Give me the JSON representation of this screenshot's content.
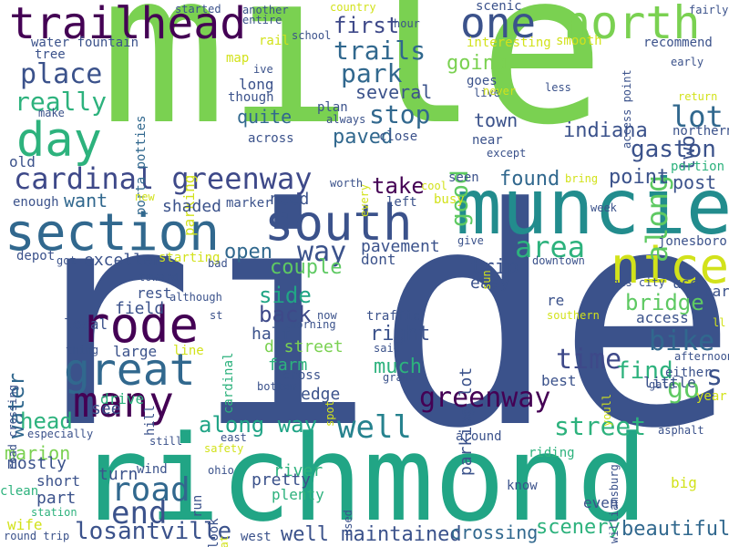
{
  "palette": {
    "background": "#ffffff"
  },
  "words": [
    {
      "text": "ride",
      "color": "#3b528b"
    },
    {
      "text": "mile",
      "color": "#7ad151"
    },
    {
      "text": "richmond",
      "color": "#21a585"
    },
    {
      "text": "muncie",
      "color": "#228c8d"
    },
    {
      "text": "trailhead",
      "color": "#440154"
    },
    {
      "text": "north",
      "color": "#7ad151"
    },
    {
      "text": "section",
      "color": "#31688e"
    },
    {
      "text": "south",
      "color": "#3b528b"
    },
    {
      "text": "cardinal greenway",
      "color": "#3e4989"
    },
    {
      "text": "one",
      "color": "#3b528b"
    },
    {
      "text": "day",
      "color": "#2db27d"
    },
    {
      "text": "rode",
      "color": "#440154"
    },
    {
      "text": "great",
      "color": "#31688e"
    },
    {
      "text": "nice",
      "color": "#d2e21b"
    },
    {
      "text": "road",
      "color": "#31688e"
    },
    {
      "text": "many",
      "color": "#440154"
    },
    {
      "text": "area",
      "color": "#2db27d"
    },
    {
      "text": "well",
      "color": "#26828e"
    },
    {
      "text": "place",
      "color": "#3b528b"
    },
    {
      "text": "trails",
      "color": "#31688e"
    },
    {
      "text": "park",
      "color": "#31688e"
    },
    {
      "text": "really",
      "color": "#2db27d"
    },
    {
      "text": "stop",
      "color": "#31688e"
    },
    {
      "text": "lot",
      "color": "#31688e"
    },
    {
      "text": "along",
      "color": "#5ec962"
    },
    {
      "text": "bike",
      "color": "#31688e"
    },
    {
      "text": "time",
      "color": "#3e4989"
    },
    {
      "text": "way",
      "color": "#3b528b"
    },
    {
      "text": "along way",
      "color": "#20a486"
    },
    {
      "text": "street",
      "color": "#2db27d"
    },
    {
      "text": "greenway",
      "color": "#440154"
    },
    {
      "text": "end",
      "color": "#3b528b"
    },
    {
      "text": "losantville",
      "color": "#3b528b"
    },
    {
      "text": "well maintained",
      "color": "#3b528b"
    },
    {
      "text": "gaston",
      "color": "#3b528b"
    },
    {
      "text": "indiana",
      "color": "#3b528b"
    },
    {
      "text": "paved",
      "color": "#31688e"
    },
    {
      "text": "first",
      "color": "#3e4989"
    },
    {
      "text": "going",
      "color": "#7ad151"
    },
    {
      "text": "good",
      "color": "#5ec962"
    },
    {
      "text": "two",
      "color": "#3b528b"
    },
    {
      "text": "town",
      "color": "#3b528b"
    },
    {
      "text": "several",
      "color": "#3b528b"
    },
    {
      "text": "quite",
      "color": "#31688e"
    },
    {
      "text": "found",
      "color": "#31688e"
    },
    {
      "text": "take",
      "color": "#440154"
    },
    {
      "text": "point",
      "color": "#3b528b"
    },
    {
      "text": "post",
      "color": "#3b528b"
    },
    {
      "text": "side",
      "color": "#21a585"
    },
    {
      "text": "back",
      "color": "#3e4989"
    },
    {
      "text": "water",
      "color": "#31688e"
    },
    {
      "text": "open",
      "color": "#31688e"
    },
    {
      "text": "couple",
      "color": "#5ec962"
    },
    {
      "text": "trip",
      "color": "#3b528b"
    },
    {
      "text": "right",
      "color": "#3b528b"
    },
    {
      "text": "much",
      "color": "#2db27d"
    },
    {
      "text": "bridge",
      "color": "#5ec962"
    },
    {
      "text": "find",
      "color": "#2db27d"
    },
    {
      "text": "go",
      "color": "#5ec962"
    },
    {
      "text": "s",
      "color": "#3b528b"
    },
    {
      "text": "head",
      "color": "#2db27d"
    },
    {
      "text": "marion",
      "color": "#7ad151"
    },
    {
      "text": "beautiful",
      "color": "#31688e"
    },
    {
      "text": "scenery",
      "color": "#2db27d"
    },
    {
      "text": "crossing",
      "color": "#31688e"
    },
    {
      "text": "parking lot",
      "color": "#3b528b"
    },
    {
      "text": "parking",
      "color": "#d2e21b"
    },
    {
      "text": "porta potties",
      "color": "#31688e"
    },
    {
      "text": "shaded",
      "color": "#3b528b"
    },
    {
      "text": "need",
      "color": "#3b528b"
    },
    {
      "text": "want",
      "color": "#31688e"
    },
    {
      "text": "excellent",
      "color": "#3b528b"
    },
    {
      "text": "pavement",
      "color": "#3b528b"
    },
    {
      "text": "dont",
      "color": "#3b528b"
    },
    {
      "text": "d street",
      "color": "#7ad151"
    },
    {
      "text": "farm",
      "color": "#2db27d"
    },
    {
      "text": "cross",
      "color": "#3b528b"
    },
    {
      "text": "edge",
      "color": "#3b528b"
    },
    {
      "text": "half",
      "color": "#3b528b"
    },
    {
      "text": "rest",
      "color": "#3b528b"
    },
    {
      "text": "field",
      "color": "#3b528b"
    },
    {
      "text": "local",
      "color": "#3b528b"
    },
    {
      "text": "large",
      "color": "#3b528b"
    },
    {
      "text": "drive",
      "color": "#2db27d"
    },
    {
      "text": "see",
      "color": "#3b528b"
    },
    {
      "text": "mostly",
      "color": "#3b528b"
    },
    {
      "text": "short",
      "color": "#3b528b"
    },
    {
      "text": "part",
      "color": "#3b528b"
    },
    {
      "text": "turn",
      "color": "#3b528b"
    },
    {
      "text": "wife",
      "color": "#d2e21b"
    },
    {
      "text": "river",
      "color": "#2db27d"
    },
    {
      "text": "pretty",
      "color": "#3b528b"
    },
    {
      "text": "plenty",
      "color": "#2db27d"
    },
    {
      "text": "even",
      "color": "#3b528b"
    },
    {
      "text": "access",
      "color": "#3b528b"
    },
    {
      "text": "re",
      "color": "#3b528b"
    },
    {
      "text": "easy",
      "color": "#3b528b"
    },
    {
      "text": "use",
      "color": "#3b528b"
    },
    {
      "text": "car",
      "color": "#3b528b"
    },
    {
      "text": "jonesboro",
      "color": "#3b528b"
    },
    {
      "text": "downtown",
      "color": "#3b528b"
    },
    {
      "text": "gas city",
      "color": "#3b528b"
    },
    {
      "text": "southern",
      "color": "#d2e21b"
    },
    {
      "text": "little",
      "color": "#3b528b"
    },
    {
      "text": "best",
      "color": "#3b528b"
    },
    {
      "text": "year",
      "color": "#d2e21b"
    },
    {
      "text": "gate",
      "color": "#3b528b"
    },
    {
      "text": "either",
      "color": "#3b528b"
    },
    {
      "text": "afternoon",
      "color": "#3b528b"
    },
    {
      "text": "asphalt",
      "color": "#3b528b"
    },
    {
      "text": "big",
      "color": "#d2e21b"
    },
    {
      "text": "know",
      "color": "#3b528b"
    },
    {
      "text": "around",
      "color": "#3b528b"
    },
    {
      "text": "riding",
      "color": "#2db27d"
    },
    {
      "text": "williamsburg",
      "color": "#3b528b"
    },
    {
      "text": "used",
      "color": "#3b528b"
    },
    {
      "text": "look",
      "color": "#3b528b"
    },
    {
      "text": "flat",
      "color": "#d2e21b"
    },
    {
      "text": "ohio",
      "color": "#3b528b"
    },
    {
      "text": "run",
      "color": "#3b528b"
    },
    {
      "text": "wind",
      "color": "#3b528b"
    },
    {
      "text": "safety",
      "color": "#d2e21b"
    },
    {
      "text": "west",
      "color": "#3b528b"
    },
    {
      "text": "station",
      "color": "#2db27d"
    },
    {
      "text": "round trip",
      "color": "#3b528b"
    },
    {
      "text": "clean",
      "color": "#2db27d"
    },
    {
      "text": "especially",
      "color": "#3b528b"
    },
    {
      "text": "road crossing",
      "color": "#3b528b"
    },
    {
      "text": "still",
      "color": "#3b528b"
    },
    {
      "text": "hill",
      "color": "#3b528b"
    },
    {
      "text": "east",
      "color": "#3b528b"
    },
    {
      "text": "bottom",
      "color": "#3b528b"
    },
    {
      "text": "spot",
      "color": "#d2e21b"
    },
    {
      "text": "grade",
      "color": "#3b528b"
    },
    {
      "text": "said",
      "color": "#3b528b"
    },
    {
      "text": "co",
      "color": "#3b528b"
    },
    {
      "text": "youll",
      "color": "#d2e21b"
    },
    {
      "text": "cardinal",
      "color": "#2db27d"
    },
    {
      "text": "line",
      "color": "#d2e21b"
    },
    {
      "text": "thing",
      "color": "#3b528b"
    },
    {
      "text": "morning",
      "color": "#3b528b"
    },
    {
      "text": "now",
      "color": "#3b528b"
    },
    {
      "text": "st",
      "color": "#3b528b"
    },
    {
      "text": "although",
      "color": "#3b528b"
    },
    {
      "text": "starting",
      "color": "#d2e21b"
    },
    {
      "text": "toward",
      "color": "#3b528b"
    },
    {
      "text": "bad",
      "color": "#3b528b"
    },
    {
      "text": "got",
      "color": "#3b528b"
    },
    {
      "text": "depot",
      "color": "#3b528b"
    },
    {
      "text": "traffic",
      "color": "#3b528b"
    },
    {
      "text": "ll",
      "color": "#d2e21b"
    },
    {
      "text": "give",
      "color": "#3b528b"
    },
    {
      "text": "sun",
      "color": "#d2e21b"
    },
    {
      "text": "week",
      "color": "#3b528b"
    },
    {
      "text": "busy",
      "color": "#d2e21b"
    },
    {
      "text": "left",
      "color": "#3b528b"
    },
    {
      "text": "cool",
      "color": "#d2e21b"
    },
    {
      "text": "bring",
      "color": "#d2e21b"
    },
    {
      "text": "seen",
      "color": "#3b528b"
    },
    {
      "text": "marker",
      "color": "#3b528b"
    },
    {
      "text": "new",
      "color": "#d2e21b"
    },
    {
      "text": "enough",
      "color": "#3b528b"
    },
    {
      "text": "old",
      "color": "#3b528b"
    },
    {
      "text": "worth",
      "color": "#3b528b"
    },
    {
      "text": "every",
      "color": "#d2e21b"
    },
    {
      "text": "except",
      "color": "#3b528b"
    },
    {
      "text": "close",
      "color": "#3b528b"
    },
    {
      "text": "near",
      "color": "#3b528b"
    },
    {
      "text": "across",
      "color": "#3b528b"
    },
    {
      "text": "always",
      "color": "#3b528b"
    },
    {
      "text": "plan",
      "color": "#3b528b"
    },
    {
      "text": "though",
      "color": "#3b528b"
    },
    {
      "text": "long",
      "color": "#3b528b"
    },
    {
      "text": "ive",
      "color": "#3b528b"
    },
    {
      "text": "map",
      "color": "#d2e21b"
    },
    {
      "text": "rail",
      "color": "#d2e21b"
    },
    {
      "text": "school",
      "color": "#3b528b"
    },
    {
      "text": "make",
      "color": "#3b528b"
    },
    {
      "text": "tree",
      "color": "#3b528b"
    },
    {
      "text": "water fountain",
      "color": "#3b528b"
    },
    {
      "text": "started",
      "color": "#3b528b"
    },
    {
      "text": "another",
      "color": "#3b528b"
    },
    {
      "text": "entire",
      "color": "#3b528b"
    },
    {
      "text": "country",
      "color": "#d2e21b"
    },
    {
      "text": "hour",
      "color": "#3b528b"
    },
    {
      "text": "scenic",
      "color": "#3b528b"
    },
    {
      "text": "interesting",
      "color": "#d2e21b"
    },
    {
      "text": "goes",
      "color": "#3b528b"
    },
    {
      "text": "live",
      "color": "#3b528b"
    },
    {
      "text": "smooth",
      "color": "#d2e21b"
    },
    {
      "text": "never",
      "color": "#d2e21b"
    },
    {
      "text": "less",
      "color": "#3b528b"
    },
    {
      "text": "access point",
      "color": "#3b528b"
    },
    {
      "text": "early",
      "color": "#3b528b"
    },
    {
      "text": "fairly",
      "color": "#3b528b"
    },
    {
      "text": "recommend",
      "color": "#3b528b"
    },
    {
      "text": "return",
      "color": "#d2e21b"
    },
    {
      "text": "northern",
      "color": "#3b528b"
    },
    {
      "text": "portion",
      "color": "#2db27d"
    }
  ]
}
